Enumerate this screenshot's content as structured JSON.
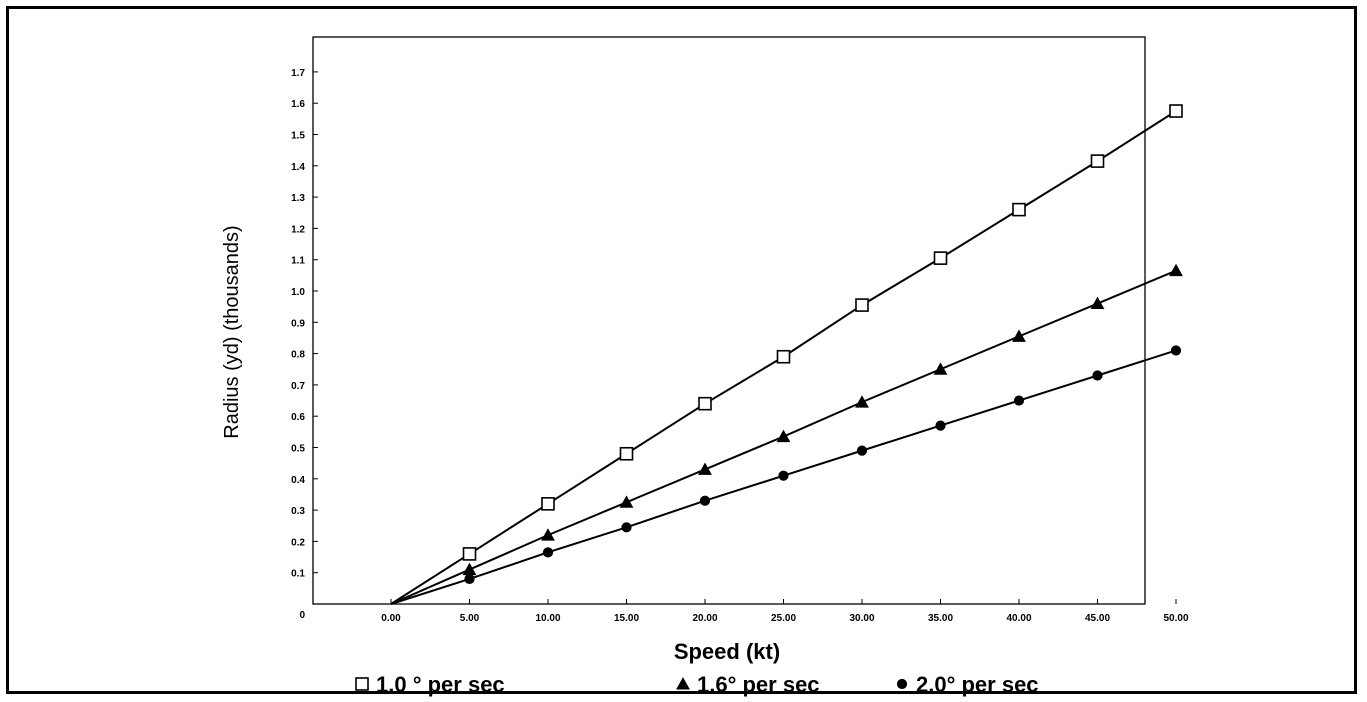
{
  "chart_data": {
    "type": "line",
    "title": "",
    "xlabel": "Speed (kt)",
    "ylabel": "Radius (yd) (thousands)",
    "x": [
      0,
      5,
      10,
      15,
      20,
      25,
      30,
      35,
      40,
      45,
      50
    ],
    "x_tick_labels": [
      "0.00",
      "5.00",
      "10.00",
      "15.00",
      "20.00",
      "25.00",
      "30.00",
      "35.00",
      "40.00",
      "45.00",
      "50.00"
    ],
    "y_tick_labels": [
      "0",
      "0.1",
      "0.2",
      "0.3",
      "0.4",
      "0.5",
      "0.6",
      "0.7",
      "0.8",
      "0.9",
      "1.0",
      "1.1",
      "1.2",
      "1.3",
      "1.4",
      "1.5",
      "1.6",
      "1.7"
    ],
    "ylim": [
      0,
      1.8
    ],
    "grid": false,
    "legend_position": "bottom",
    "series": [
      {
        "name": "1.0 ° per sec",
        "marker": "open-square",
        "color": "#000000",
        "values": [
          0,
          0.16,
          0.32,
          0.48,
          0.64,
          0.79,
          0.955,
          1.105,
          1.26,
          1.415,
          1.575
        ]
      },
      {
        "name": "1.6° per sec",
        "marker": "filled-triangle",
        "color": "#000000",
        "values": [
          0,
          0.11,
          0.22,
          0.325,
          0.43,
          0.535,
          0.645,
          0.75,
          0.855,
          0.96,
          1.065
        ]
      },
      {
        "name": "2.0° per sec",
        "marker": "filled-circle",
        "color": "#000000",
        "values": [
          0,
          0.08,
          0.165,
          0.245,
          0.33,
          0.41,
          0.49,
          0.57,
          0.65,
          0.73,
          0.81
        ]
      }
    ]
  }
}
